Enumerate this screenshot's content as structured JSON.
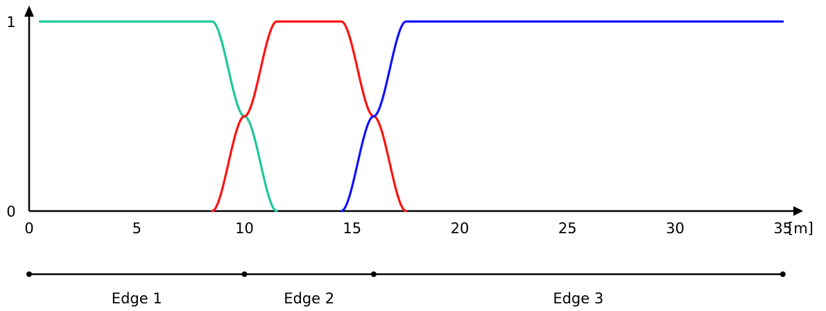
{
  "chart_data": {
    "type": "line",
    "title": "",
    "xlabel": "",
    "ylabel": "",
    "x_unit": "[m]",
    "xlim": [
      0,
      35
    ],
    "ylim": [
      0,
      1
    ],
    "x_ticks": [
      0,
      5,
      10,
      15,
      20,
      25,
      30,
      35
    ],
    "x_tick_labels": [
      "0",
      "5",
      "10",
      "15",
      "20",
      "25",
      "30",
      "35"
    ],
    "y_ticks": [
      0,
      1
    ],
    "y_tick_labels": [
      "0",
      "1"
    ],
    "grid": false,
    "legend": "none",
    "series": [
      {
        "color": "#1ec79a",
        "x_start": 0.5,
        "x_end": 11.5,
        "profile": [
          [
            0.5,
            1
          ],
          [
            8.5,
            1
          ],
          [
            10,
            0.5
          ],
          [
            11.5,
            0
          ]
        ]
      },
      {
        "color": "#ff1010",
        "x_start": 8.5,
        "x_end": 17.5,
        "profile": [
          [
            8.5,
            0
          ],
          [
            10,
            0.5
          ],
          [
            11.5,
            1
          ],
          [
            14.5,
            1
          ],
          [
            16,
            0.5
          ],
          [
            17.5,
            0
          ]
        ]
      },
      {
        "color": "#1010ff",
        "x_start": 14.5,
        "x_end": 35,
        "profile": [
          [
            14.5,
            0
          ],
          [
            16,
            0.5
          ],
          [
            17.5,
            1
          ],
          [
            35,
            1
          ]
        ]
      }
    ],
    "edges": {
      "boundaries": [
        0,
        10,
        16,
        35
      ],
      "labels": [
        "Edge 1",
        "Edge 2",
        "Edge 3"
      ]
    }
  }
}
